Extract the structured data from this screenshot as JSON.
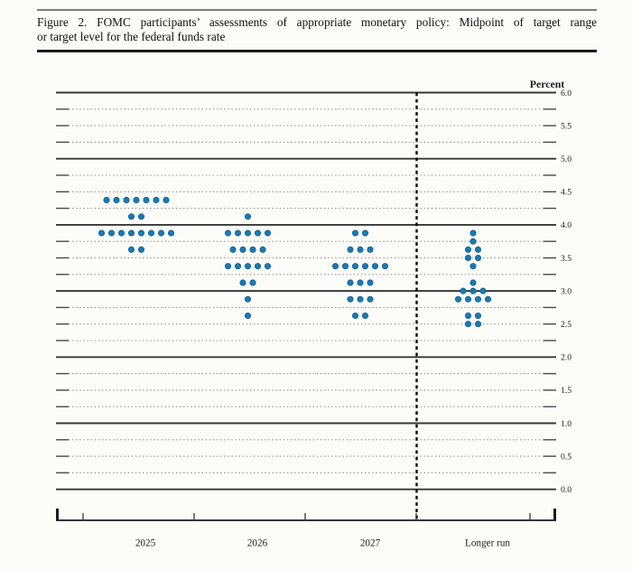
{
  "figure": {
    "title_line1": "Figure 2.  FOMC participants’ assessments of appropriate monetary policy: Midpoint of target range",
    "title_line2": "or target level for the federal funds rate"
  },
  "chart_data": {
    "type": "scatter",
    "subtype": "fomc-dot-plot",
    "title": "FOMC participants’ assessments of appropriate monetary policy: Midpoint of target range or target level for the federal funds rate",
    "ylabel": "Percent",
    "xlabel": "",
    "ylim": [
      0.0,
      6.0
    ],
    "grid_interval": 0.25,
    "label_interval": 0.5,
    "grid": "on",
    "legend": "none",
    "separator_before_category": "Longer run",
    "dot_color": "#1a79b2",
    "dot_edge_color": "#0f5d8c",
    "y_tick_labels": [
      "0.0",
      "0.5",
      "1.0",
      "1.5",
      "2.0",
      "2.5",
      "3.0",
      "3.5",
      "4.0",
      "4.5",
      "5.0",
      "5.5",
      "6.0"
    ],
    "categories": [
      "2025",
      "2026",
      "2027",
      "Longer run"
    ],
    "series": [
      {
        "category": "2025",
        "dots": [
          {
            "value": 4.375,
            "count": 7
          },
          {
            "value": 4.125,
            "count": 2
          },
          {
            "value": 3.875,
            "count": 8
          },
          {
            "value": 3.625,
            "count": 2
          }
        ]
      },
      {
        "category": "2026",
        "dots": [
          {
            "value": 4.125,
            "count": 1
          },
          {
            "value": 3.875,
            "count": 5
          },
          {
            "value": 3.625,
            "count": 4
          },
          {
            "value": 3.375,
            "count": 5
          },
          {
            "value": 3.125,
            "count": 2
          },
          {
            "value": 2.875,
            "count": 1
          },
          {
            "value": 2.625,
            "count": 1
          }
        ]
      },
      {
        "category": "2027",
        "dots": [
          {
            "value": 3.875,
            "count": 2
          },
          {
            "value": 3.625,
            "count": 3
          },
          {
            "value": 3.375,
            "count": 6
          },
          {
            "value": 3.125,
            "count": 3
          },
          {
            "value": 2.875,
            "count": 3
          },
          {
            "value": 2.625,
            "count": 2
          }
        ]
      },
      {
        "category": "Longer run",
        "dots": [
          {
            "value": 3.875,
            "count": 1
          },
          {
            "value": 3.75,
            "count": 1
          },
          {
            "value": 3.625,
            "count": 2
          },
          {
            "value": 3.5,
            "count": 2
          },
          {
            "value": 3.375,
            "count": 1
          },
          {
            "value": 3.125,
            "count": 1
          },
          {
            "value": 3.0,
            "count": 3
          },
          {
            "value": 2.875,
            "count": 4
          },
          {
            "value": 2.625,
            "count": 2
          },
          {
            "value": 2.5,
            "count": 2
          }
        ]
      }
    ]
  }
}
